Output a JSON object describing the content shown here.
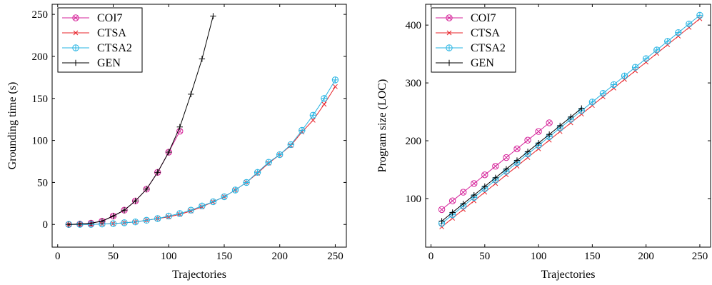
{
  "chart_data": [
    {
      "type": "line",
      "xlabel": "Trajectories",
      "ylabel": "Grounding time (s)",
      "xlim": [
        -5,
        260
      ],
      "ylim": [
        -27,
        262
      ],
      "xticks": [
        0,
        50,
        100,
        150,
        200,
        250
      ],
      "yticks": [
        0,
        50,
        100,
        150,
        200,
        250
      ],
      "grid": false,
      "legend_position": "top-left",
      "series": [
        {
          "name": "COI7",
          "color": "#d6269b",
          "marker": "circle-x",
          "x": [
            10,
            20,
            30,
            40,
            50,
            60,
            70,
            80,
            90,
            100,
            110
          ],
          "y": [
            0,
            0.5,
            1.5,
            4,
            10,
            17,
            28,
            42,
            62,
            86,
            111
          ]
        },
        {
          "name": "CTSA",
          "color": "#e8242b",
          "marker": "x",
          "x": [
            10,
            20,
            30,
            40,
            50,
            60,
            70,
            80,
            90,
            100,
            110,
            120,
            130,
            140,
            150,
            160,
            170,
            180,
            190,
            200,
            210,
            220,
            230,
            240,
            250
          ],
          "y": [
            0,
            0,
            0,
            0.5,
            1,
            2,
            3,
            5,
            7,
            9,
            12,
            16,
            21,
            27,
            33,
            41,
            50,
            61,
            73,
            83,
            94,
            110,
            124,
            143,
            164
          ]
        },
        {
          "name": "CTSA2",
          "color": "#27b4e3",
          "marker": "circle-plus",
          "x": [
            10,
            20,
            30,
            40,
            50,
            60,
            70,
            80,
            90,
            100,
            110,
            120,
            130,
            140,
            150,
            160,
            170,
            180,
            190,
            200,
            210,
            220,
            230,
            240,
            250
          ],
          "y": [
            0,
            0,
            0,
            0.5,
            1,
            2,
            3,
            5,
            7,
            10,
            13,
            17,
            22,
            27,
            33,
            41,
            50,
            62,
            74,
            83,
            95,
            112,
            130,
            150,
            172
          ]
        },
        {
          "name": "GEN",
          "color": "#000000",
          "marker": "plus",
          "x": [
            10,
            20,
            30,
            40,
            50,
            60,
            70,
            80,
            90,
            100,
            110,
            120,
            130,
            140
          ],
          "y": [
            0,
            0.5,
            1.5,
            4,
            10,
            17,
            28,
            42,
            62,
            86,
            116,
            155,
            197,
            248
          ]
        }
      ]
    },
    {
      "type": "line",
      "xlabel": "Trajectories",
      "ylabel": "Program size (LOC)",
      "xlim": [
        -5,
        260
      ],
      "ylim": [
        16,
        436
      ],
      "xticks": [
        0,
        50,
        100,
        150,
        200,
        250
      ],
      "yticks": [
        100,
        200,
        300,
        400
      ],
      "grid": false,
      "legend_position": "top-left",
      "series": [
        {
          "name": "COI7",
          "color": "#d6269b",
          "marker": "circle-x",
          "x": [
            10,
            20,
            30,
            40,
            50,
            60,
            70,
            80,
            90,
            100,
            110
          ],
          "y": [
            81,
            96,
            111,
            126,
            141,
            156,
            171,
            186,
            201,
            216,
            231
          ]
        },
        {
          "name": "CTSA",
          "color": "#e8242b",
          "marker": "x",
          "x": [
            10,
            20,
            30,
            40,
            50,
            60,
            70,
            80,
            90,
            100,
            110,
            120,
            130,
            140,
            150,
            160,
            170,
            180,
            190,
            200,
            210,
            220,
            230,
            240,
            250
          ],
          "y": [
            51,
            66,
            81,
            96,
            111,
            126,
            141,
            156,
            171,
            186,
            201,
            216,
            231,
            246,
            261,
            276,
            291,
            306,
            321,
            336,
            351,
            366,
            381,
            396,
            411
          ]
        },
        {
          "name": "CTSA2",
          "color": "#27b4e3",
          "marker": "circle-plus",
          "x": [
            10,
            20,
            30,
            40,
            50,
            60,
            70,
            80,
            90,
            100,
            110,
            120,
            130,
            140,
            150,
            160,
            170,
            180,
            190,
            200,
            210,
            220,
            230,
            240,
            250
          ],
          "y": [
            57,
            72,
            87,
            102,
            117,
            132,
            147,
            162,
            177,
            192,
            207,
            222,
            237,
            252,
            267,
            282,
            297,
            312,
            327,
            342,
            357,
            372,
            387,
            402,
            417
          ]
        },
        {
          "name": "GEN",
          "color": "#000000",
          "marker": "plus",
          "x": [
            10,
            20,
            30,
            40,
            50,
            60,
            70,
            80,
            90,
            100,
            110,
            120,
            130,
            140
          ],
          "y": [
            61,
            76,
            91,
            106,
            121,
            136,
            151,
            166,
            181,
            196,
            211,
            226,
            241,
            256
          ]
        }
      ]
    }
  ]
}
